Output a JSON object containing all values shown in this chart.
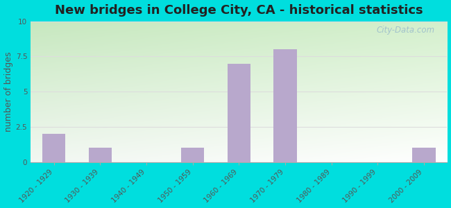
{
  "title": "New bridges in College City, CA - historical statistics",
  "ylabel": "number of bridges",
  "categories": [
    "1920 - 1929",
    "1930 - 1939",
    "1940 - 1949",
    "1950 - 1959",
    "1960 - 1969",
    "1970 - 1979",
    "1980 - 1989",
    "1990 - 1999",
    "2000 - 2009"
  ],
  "values": [
    2,
    1,
    0,
    1,
    7,
    8,
    0,
    0,
    1
  ],
  "bar_color": "#b8a8cc",
  "ylim": [
    0,
    10
  ],
  "yticks": [
    0,
    2.5,
    5,
    7.5,
    10
  ],
  "background_outer": "#00dede",
  "background_plot_topleft": "#c8e8c0",
  "background_plot_bottomright": "#f0f8ee",
  "grid_color": "#dddddd",
  "title_fontsize": 13,
  "axis_label_fontsize": 9,
  "tick_fontsize": 7.5,
  "watermark_text": "City-Data.com",
  "watermark_color": "#99bbcc"
}
